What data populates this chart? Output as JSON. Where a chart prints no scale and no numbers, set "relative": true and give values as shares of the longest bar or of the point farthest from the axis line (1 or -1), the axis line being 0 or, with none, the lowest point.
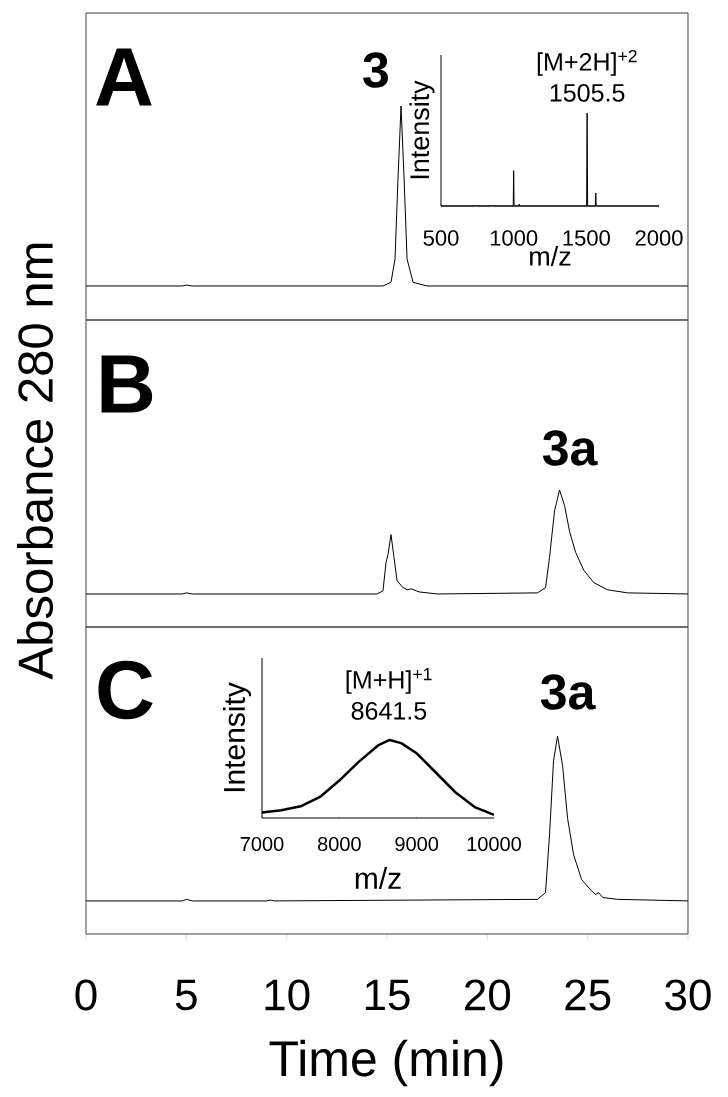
{
  "chart_data": [
    {
      "type": "line",
      "relative": true,
      "xlim": [
        0,
        30
      ],
      "xticks": [
        0,
        5,
        10,
        15,
        20,
        25,
        30
      ],
      "tick_labels": false,
      "annotations": [
        "A",
        {
          "text": "3",
          "x": 15.7,
          "y": 1
        }
      ],
      "series": [
        {
          "color": "#000000",
          "x": [
            0,
            4.8,
            5.0,
            5.3,
            14.8,
            15.2,
            15.4,
            15.55,
            15.7,
            15.85,
            16.0,
            16.3,
            17,
            30
          ],
          "values": [
            0.159,
            0.159,
            0.163,
            0.159,
            0.159,
            0.176,
            0.285,
            0.664,
            1,
            0.664,
            0.285,
            0.176,
            0.159,
            0.159
          ]
        }
      ]
    },
    {
      "type": "line",
      "relative": true,
      "xlabel": "m/z",
      "ylabel": "Intensity",
      "xlim": [
        500,
        2000
      ],
      "xticks": [
        500,
        1000,
        1500,
        2000
      ],
      "annotations": [
        {
          "text": "[M+2H]$^{+2}$",
          "x": 1505.5,
          "y": 1
        },
        {
          "text": "1505.5",
          "x": 1505.5,
          "y": 1
        }
      ],
      "series": [
        {
          "color": "#000000",
          "x": [
            500,
            740,
            745,
            750,
            850,
            855,
            860,
            997,
            1000,
            1003,
            1035,
            1038,
            1041,
            1502,
            1505.5,
            1509,
            1562,
            1565,
            1568,
            2000
          ],
          "values": [
            0,
            0,
            0.01,
            0,
            0,
            0.01,
            0,
            0,
            0.38,
            0,
            0,
            0.02,
            0,
            0,
            1,
            0,
            0,
            0.14,
            0,
            0
          ]
        }
      ]
    },
    {
      "type": "line",
      "relative": true,
      "xlim": [
        0,
        30
      ],
      "xticks": [
        0,
        5,
        10,
        15,
        20,
        25,
        30
      ],
      "tick_labels": false,
      "ylabel": "Absorbance 280 nm",
      "annotations": [
        "B",
        {
          "text": "3a",
          "x": 23.6,
          "y": 1
        }
      ],
      "series": [
        {
          "color": "#000000",
          "x": [
            0,
            4.8,
            5,
            5.3,
            14.5,
            14.8,
            14.95,
            15.05,
            15.2,
            15.35,
            15.5,
            15.75,
            16.0,
            16.2,
            16.6,
            17.5,
            22.5,
            22.9,
            23.1,
            23.35,
            23.6,
            23.85,
            24.1,
            24.4,
            24.8,
            25.3,
            26,
            27,
            30
          ],
          "values": [
            0.241,
            0.241,
            0.249,
            0.241,
            0.241,
            0.264,
            0.469,
            0.529,
            0.674,
            0.507,
            0.34,
            0.294,
            0.271,
            0.279,
            0.256,
            0.241,
            0.249,
            0.287,
            0.507,
            0.848,
            1,
            0.886,
            0.696,
            0.545,
            0.416,
            0.324,
            0.271,
            0.249,
            0.241
          ]
        }
      ]
    },
    {
      "type": "line",
      "relative": true,
      "xlim": [
        0,
        30
      ],
      "xticks": [
        0,
        5,
        10,
        15,
        20,
        25,
        30
      ],
      "xlabel": "Time (min)",
      "annotations": [
        "C",
        {
          "text": "3a",
          "x": 23.5,
          "y": 1
        }
      ],
      "series": [
        {
          "color": "#000000",
          "x": [
            0,
            4.8,
            5.0,
            5.3,
            9.0,
            9.2,
            9.4,
            22.5,
            22.9,
            23.1,
            23.3,
            23.5,
            23.75,
            24.0,
            24.3,
            24.7,
            25.2,
            25.4,
            25.55,
            25.75,
            26.5,
            30
          ],
          "values": [
            0.167,
            0.167,
            0.175,
            0.167,
            0.167,
            0.171,
            0.167,
            0.175,
            0.209,
            0.5,
            0.875,
            1,
            0.85,
            0.584,
            0.4,
            0.275,
            0.217,
            0.2,
            0.209,
            0.184,
            0.175,
            0.167
          ]
        }
      ]
    },
    {
      "type": "line",
      "relative": true,
      "xlabel": "m/z",
      "ylabel": "Intensity",
      "xlim": [
        7000,
        10000
      ],
      "xticks": [
        7000,
        8000,
        9000,
        10000
      ],
      "annotations": [
        {
          "text": "[M+H]$^{+1}$",
          "x": 8641.5,
          "y": 1
        },
        {
          "text": "8641.5",
          "x": 8641.5,
          "y": 1
        }
      ],
      "series": [
        {
          "color": "#000000",
          "x": [
            7000,
            7250,
            7500,
            7750,
            8000,
            8250,
            8500,
            8650,
            8800,
            9000,
            9250,
            9500,
            9750,
            10000
          ],
          "values": [
            0.07,
            0.1,
            0.15,
            0.27,
            0.48,
            0.72,
            0.93,
            1,
            0.96,
            0.83,
            0.58,
            0.33,
            0.14,
            0.04
          ]
        }
      ]
    }
  ]
}
